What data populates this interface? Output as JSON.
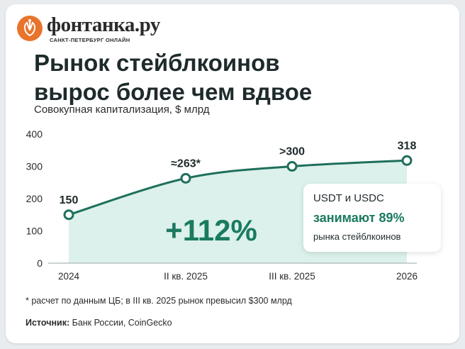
{
  "brand": {
    "name": "фонтанка.ру",
    "tagline": "САНКТ-ПЕТЕРБУРГ ОНЛАЙН"
  },
  "headline": {
    "line1": "Рынок стейблкоинов",
    "line2": "вырос более чем вдвое"
  },
  "callout": {
    "line1": "USDT и USDC",
    "line2": "занимают 89%",
    "line3": "рынка стейблкоинов"
  },
  "footnote": "* расчет по данным ЦБ; в III кв. 2025 рынок превысил $300 млрд",
  "source": {
    "label": "Источник:",
    "text": " Банк России, CoinGecko"
  },
  "colors": {
    "line": "#1f6f5c",
    "area": "#d6efe7",
    "highlight": "#1a7a60",
    "logo": "#e8742c"
  },
  "chart_data": {
    "type": "area",
    "title": "Рынок стейблкоинов вырос более чем вдвое",
    "subtitle": "Совокупная капитализация, $ млрд",
    "categories": [
      "2024",
      "II кв. 2025",
      "III кв. 2025",
      "2026"
    ],
    "series": [
      {
        "values": [
          150,
          263,
          300,
          318
        ],
        "data_labels": [
          "150",
          "≈263*",
          ">300",
          "318"
        ]
      }
    ],
    "yticks": [
      0,
      100,
      200,
      300,
      400
    ],
    "ylim": [
      0,
      400
    ],
    "grid": false,
    "annotation": "+112%"
  }
}
